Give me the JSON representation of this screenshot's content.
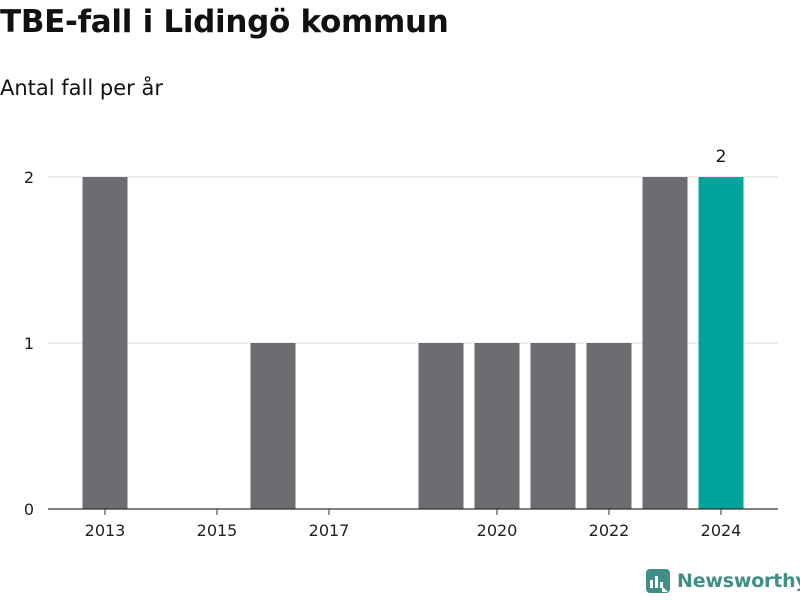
{
  "title": "TBE-fall i Lidingö kommun",
  "subtitle": "Antal fall per år",
  "brand": {
    "name": "Newsworthy",
    "icon": "newsworthy-logo-icon"
  },
  "colors": {
    "bar": "#6d6c71",
    "highlight": "#00a49a",
    "grid": "#dddddd",
    "axis": "#333333"
  },
  "chart_data": {
    "type": "bar",
    "title": "TBE-fall i Lidingö kommun",
    "subtitle": "Antal fall per år",
    "x": [
      2013,
      2014,
      2015,
      2016,
      2017,
      2018,
      2019,
      2020,
      2021,
      2022,
      2023,
      2024
    ],
    "values": [
      2,
      0,
      0,
      1,
      0,
      0,
      1,
      1,
      1,
      1,
      2,
      2
    ],
    "x_ticks": [
      "2013",
      "2015",
      "2017",
      "2020",
      "2022",
      "2024"
    ],
    "y_ticks": [
      "0",
      "1",
      "2"
    ],
    "ylim": [
      0,
      2
    ],
    "highlight": 2024,
    "data_labels": [
      {
        "x": 2024,
        "label": "2"
      }
    ],
    "grid": true,
    "legend": "none"
  }
}
